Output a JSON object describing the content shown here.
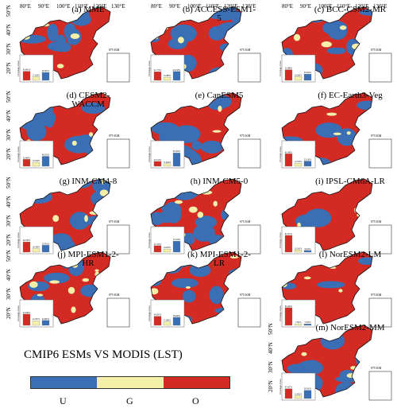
{
  "axes": {
    "lon_labels": [
      "80°E",
      "90°E",
      "100°E",
      "110°E",
      "120°E",
      "130°E"
    ],
    "lat_labels": [
      "50°N",
      "40°N",
      "30°N",
      "20°N"
    ],
    "scale_label": "975 KM",
    "bar_axis_label": "Percentage of area"
  },
  "colors": {
    "U": "#3a6fb5",
    "G": "#f5f0a8",
    "O": "#d42a24"
  },
  "legend": {
    "title": "CMIP6 ESMs VS MODIS (LST)",
    "items": [
      {
        "key": "U",
        "label": "U",
        "color": "#3a6fb5"
      },
      {
        "key": "G",
        "label": "G",
        "color": "#f5f0a8"
      },
      {
        "key": "O",
        "label": "O",
        "color": "#d42a24"
      }
    ]
  },
  "panels": [
    {
      "title": "(a) MME",
      "U": 38.391,
      "G": 17.618,
      "O": 43.991
    },
    {
      "title": "(b) ACCESS-ESM1-5",
      "U": 43.158,
      "G": 15.068,
      "O": 41.774
    },
    {
      "title": "(c) BCC-CSM2-MR",
      "U": 30.294,
      "G": 18.02,
      "O": 51.686
    },
    {
      "title": "(d) CESM2-WACCM",
      "U": 48.192,
      "G": 18.344,
      "O": 33.464
    },
    {
      "title": "(e) CanESM5",
      "U": 64.583,
      "G": 11.904,
      "O": 23.513
    },
    {
      "title": "(f) EC-Earth3-Veg",
      "U": 25.13,
      "G": 14.524,
      "O": 60.346
    },
    {
      "title": "(g) INM-CM4-8",
      "U": 33.452,
      "G": 16.768,
      "O": 49.78
    },
    {
      "title": "(h) INM-CM5-0",
      "U": 53.524,
      "G": 14.923,
      "O": 31.553
    },
    {
      "title": "(i) IPSL-CM6A-LR",
      "U": 8.613,
      "G": 10.31,
      "O": 81.077
    },
    {
      "title": "(j) MPI-ESM1-2-HR",
      "U": 23.687,
      "G": 22.267,
      "O": 54.046
    },
    {
      "title": "(k) MPI-ESM1-2-LR",
      "U": 38.926,
      "G": 17.069,
      "O": 44.005
    },
    {
      "title": "(l) NorESM2-LM",
      "U": 7.003,
      "G": 7.792,
      "O": 85.205
    },
    {
      "title": "(m) NorESM2-MM",
      "U": 39.591,
      "G": 13.002,
      "O": 47.407
    }
  ]
}
